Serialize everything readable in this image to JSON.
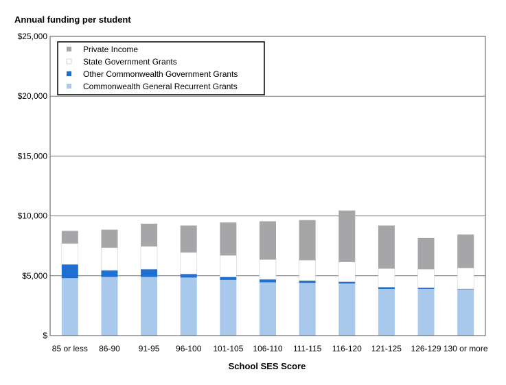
{
  "chart_data": {
    "type": "bar",
    "stacked": true,
    "title": "",
    "ylabel": "Annual funding per student",
    "xlabel": "School SES Score",
    "ylim": [
      0,
      25000
    ],
    "yticks": [
      0,
      5000,
      10000,
      15000,
      20000,
      25000
    ],
    "ytick_labels": [
      "$",
      "$5,000",
      "$10,000",
      "$15,000",
      "$20,000",
      "$25,000"
    ],
    "grid": true,
    "legend_position": "top-left",
    "categories": [
      "85 or less",
      "86-90",
      "91-95",
      "96-100",
      "101-105",
      "106-110",
      "111-115",
      "116-120",
      "121-125",
      "126-129",
      "130 or more"
    ],
    "series": [
      {
        "name": "Commonwealth General Recurrent Grants",
        "color": "#a8c8ec",
        "values": [
          4800,
          4900,
          4900,
          4850,
          4650,
          4450,
          4400,
          4350,
          3900,
          3900,
          3850
        ]
      },
      {
        "name": "Other Commonwealth Government Grants",
        "color": "#1e6fd0",
        "values": [
          1150,
          550,
          650,
          300,
          250,
          250,
          200,
          150,
          150,
          100,
          50
        ]
      },
      {
        "name": "State Government Grants",
        "color": "#ffffff",
        "values": [
          1750,
          1900,
          1900,
          1800,
          1800,
          1650,
          1700,
          1650,
          1550,
          1550,
          1750
        ]
      },
      {
        "name": "Private Income",
        "color": "#a6a6a8",
        "values": [
          1050,
          1500,
          1900,
          2250,
          2750,
          3200,
          3350,
          4300,
          3600,
          2600,
          2800
        ]
      }
    ]
  }
}
